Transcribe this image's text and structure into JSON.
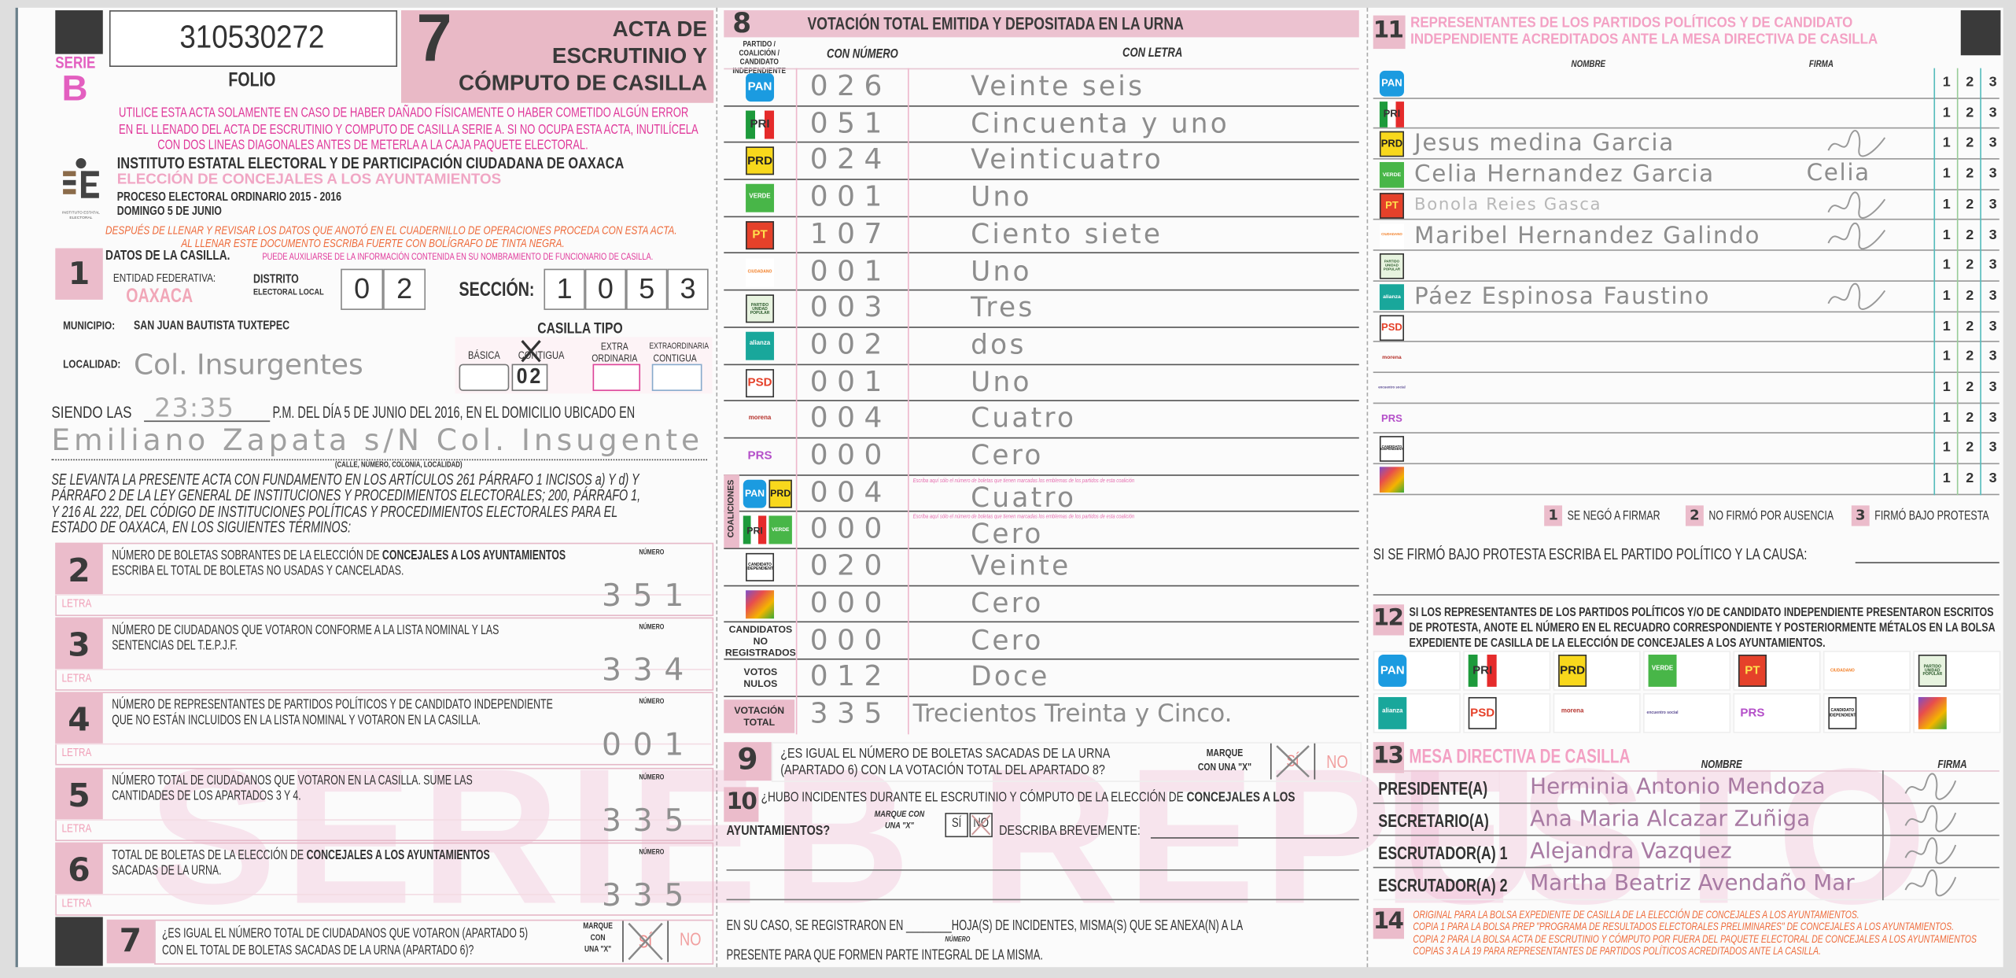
{
  "header": {
    "serie_label": "SERIE",
    "serie_letter": "B",
    "folio_number": "310530272",
    "folio_label": "FOLIO",
    "acta_number": "7",
    "title_lines": [
      "ACTA DE",
      "ESCRUTINIO Y",
      "CÓMPUTO DE CASILLA"
    ]
  },
  "instructions": [
    "UTILICE ESTA ACTA SOLAMENTE EN CASO DE HABER DAÑADO FÍSICAMENTE O HABER COMETIDO ALGÚN ERROR",
    "EN EL LLENADO DEL ACTA DE ESCRUTINIO Y COMPUTO DE CASILLA SERIE A. SI NO OCUPA ESTA ACTA, INUTILÍCELA",
    "CON DOS LINEAS DIAGONALES ANTES DE METERLA A LA CAJA PAQUETE ELECTORAL."
  ],
  "institute": {
    "logo_text": "INSTITUTO ESTATAL ELECTORAL",
    "name": "INSTITUTO ESTATAL ELECTORAL Y DE PARTICIPACIÓN CIUDADANA DE OAXACA",
    "election": "ELECCIÓN DE CONCEJALES A LOS AYUNTAMIENTOS",
    "process": "PROCESO ELECTORAL ORDINARIO 2015 - 2016",
    "date": "DOMINGO 5 DE JUNIO"
  },
  "fill_instructions": [
    "DESPUÉS DE LLENAR Y REVISAR LOS DATOS QUE ANOTÓ EN EL CUADERNILLO DE OPERACIONES PROCEDA CON ESTA ACTA.",
    "AL LLENAR ESTE DOCUMENTO ESCRIBA FUERTE CON BOLÍGRAFO DE TINTA NEGRA."
  ],
  "section1": {
    "number": "1",
    "title": "DATOS DE LA CASILLA.",
    "hint": "PUEDE AUXILIARSE DE LA INFORMACIÓN CONTENIDA EN SU NOMBRAMIENTO DE FUNCIONARIO DE CASILLA.",
    "entidad_label": "ENTIDAD FEDERATIVA:",
    "entidad_value": "OAXACA",
    "distrito_label_1": "DISTRITO",
    "distrito_label_2": "ELECTORAL LOCAL",
    "distrito_digits": [
      "0",
      "2"
    ],
    "seccion_label": "SECCIÓN:",
    "seccion_digits": [
      "1",
      "0",
      "5",
      "3"
    ],
    "municipio_label": "MUNICIPIO:",
    "municipio_value": "SAN JUAN BAUTISTA TUXTEPEC",
    "casilla_tipo_label": "CASILLA TIPO",
    "casilla_tipos": {
      "basica": "BÁSICA",
      "contigua": "CONTIGUA",
      "contigua_value": "02",
      "contigua_marked": true,
      "extra_1": "EXTRA",
      "extra_2": "ORDINARIA",
      "extra_contigua_1": "EXTRAORDINARIA",
      "extra_contigua_2": "CONTIGUA"
    },
    "localidad_label": "LOCALIDAD:",
    "localidad_value": "Col. Insurgentes",
    "siendo_las_label": "SIENDO LAS",
    "hora": "23:35",
    "siendo_las_rest": "P.M. DEL DÍA 5 DE JUNIO DEL 2016, EN EL DOMICILIO UBICADO EN",
    "domicilio": "Emiliano Zapata s/N Col. Insugente",
    "domicilio_hint": "(CALLE, NÚMERO, COLONIA, LOCALIDAD)",
    "legal_text": [
      "SE LEVANTA LA PRESENTE ACTA CON FUNDAMENTO EN LOS ARTÍCULOS 261 PÁRRAFO 1 INCISOS a) Y d) Y",
      "PÁRRAFO  2 DE LA LEY GENERAL DE INSTITUCIONES Y PROCEDIMIENTOS ELECTORALES; 200, PÁRRAFO 1,",
      "Y 216 AL 222,  DEL CÓDIGO DE INSTITUCIONES POLÍTICAS Y PROCEDIMIENTOS ELECTORALES PARA EL",
      "ESTADO DE OAXACA, EN LOS SIGUIENTES TÉRMINOS:"
    ]
  },
  "count_sections": [
    {
      "number": "2",
      "line1": "NÚMERO DE BOLETAS SOBRANTES DE LA ELECCIÓN DE ",
      "line1_bold": "CONCEJALES A LOS AYUNTAMIENTOS",
      "line2": "ESCRIBA EL TOTAL DE BOLETAS NO USADAS Y CANCELADAS.",
      "value": "351"
    },
    {
      "number": "3",
      "line1": "NÚMERO DE CIUDADANOS QUE VOTARON CONFORME A LA LISTA NOMINAL Y LAS",
      "line1_bold": "",
      "line2": "SENTENCIAS DEL T.E.P.J.F.",
      "value": "334"
    },
    {
      "number": "4",
      "line1": "NÚMERO DE REPRESENTANTES DE PARTIDOS POLÍTICOS Y DE CANDIDATO INDEPENDIENTE",
      "line1_bold": "",
      "line2": "QUE NO ESTÁN INCLUIDOS EN LA LISTA NOMINAL Y VOTARON EN LA CASILLA.",
      "value": "001"
    },
    {
      "number": "5",
      "line1": "NÚMERO TOTAL DE CIUDADANOS QUE VOTARON EN LA CASILLA. SUME LAS",
      "line1_bold": "",
      "line2": "CANTIDADES DE LOS APARTADOS 3 Y 4.",
      "value": "335"
    },
    {
      "number": "6",
      "line1": "TOTAL DE BOLETAS DE LA ELECCIÓN DE ",
      "line1_bold": "CONCEJALES A LOS AYUNTAMIENTOS",
      "line2": "SACADAS DE LA URNA.",
      "value": "335"
    }
  ],
  "count_labels": {
    "numero": "NÚMERO",
    "letra": "LETRA"
  },
  "section7": {
    "number": "7",
    "question": [
      "¿ES IGUAL EL NÚMERO TOTAL DE CIUDADANOS QUE VOTARON (APARTADO 5)",
      "CON EL TOTAL DE BOLETAS SACADAS  DE LA URNA (APARTADO 6)?"
    ],
    "marque": [
      "MARQUE",
      "CON",
      "UNA \"X\""
    ],
    "si": "SÍ",
    "no": "NO",
    "answer": "SÍ"
  },
  "watermark": [
    "SERIE",
    "B REPU",
    "ESTO"
  ],
  "parties": {
    "PAN": {
      "label": "PAN",
      "icon": "pan-emblem-icon",
      "bg": "#1b9be0",
      "fg": "#ffffff"
    },
    "PRI": {
      "label": "PRI",
      "icon": "pri-emblem-icon",
      "bg": "linear-gradient(90deg,#1d9a3b 33%,#ffffff 33%,#ffffff 66%,#e52b2b 66%)",
      "fg": "#333333"
    },
    "PRD": {
      "label": "PRD",
      "icon": "prd-emblem-icon",
      "bg": "#f8d81c",
      "fg": "#222222"
    },
    "VERDE": {
      "label": "VERDE",
      "icon": "verde-emblem-icon",
      "bg": "#48b648",
      "fg": "#ffffff"
    },
    "PT": {
      "label": "PT",
      "icon": "pt-emblem-icon",
      "bg": "#e5412a",
      "fg": "#ffe14d"
    },
    "MC": {
      "label": "CIUDADANO",
      "icon": "movimiento-ciudadano-emblem-icon",
      "bg": "#ffffff",
      "fg": "#f27c22"
    },
    "PUP": {
      "label": "PARTIDO UNIDAD POPULAR",
      "icon": "unidad-popular-emblem-icon",
      "bg": "#e7f3df",
      "fg": "#2b5a2b"
    },
    "NA": {
      "label": "alianza",
      "icon": "nueva-alianza-emblem-icon",
      "bg": "#19a79b",
      "fg": "#ffffff"
    },
    "PSD": {
      "label": "PSD",
      "icon": "psd-emblem-icon",
      "bg": "#ffffff",
      "fg": "#e5412a"
    },
    "MORENA": {
      "label": "morena",
      "icon": "morena-emblem-icon",
      "bg": "transparent",
      "fg": "#b5322c"
    },
    "PES": {
      "label": "encuentro social",
      "icon": "encuentro-social-emblem-icon",
      "bg": "transparent",
      "fg": "#5b4c93"
    },
    "PRS": {
      "label": "PRS",
      "icon": "prs-emblem-icon",
      "bg": "transparent",
      "fg": "#b44fc9"
    },
    "IND": {
      "label": "CANDIDATO INDEPENDIENTE",
      "icon": "candidato-independiente-emblem-icon",
      "bg": "#ffffff",
      "fg": "#111111"
    },
    "HAND": {
      "label": "",
      "icon": "hand-emblem-icon",
      "bg": "linear-gradient(135deg,#7b4fc9,#e84d4d,#f4b400,#3aa935)",
      "fg": "#ffffff"
    }
  },
  "section8": {
    "number": "8",
    "title": "VOTACIÓN TOTAL EMITIDA Y DEPOSITADA EN LA URNA",
    "col_party": "PARTIDO / COALICIÓN / CANDIDATO INDEPENDIENTE",
    "col_number": "CON NÚMERO",
    "col_letter": "CON LETRA",
    "coalitions_label": "COALICIONES",
    "coalition_hint": "Escriba aquí sólo el número de boletas que tienen marcadas los emblemas de los partidos de esta coalición",
    "rows": [
      {
        "logos": [
          "PAN"
        ],
        "number": "026",
        "letter": "Veinte seis"
      },
      {
        "logos": [
          "PRI"
        ],
        "number": "051",
        "letter": "Cincuenta y uno"
      },
      {
        "logos": [
          "PRD"
        ],
        "number": "024",
        "letter": "Veinticuatro"
      },
      {
        "logos": [
          "VERDE"
        ],
        "number": "001",
        "letter": "Uno"
      },
      {
        "logos": [
          "PT"
        ],
        "number": "107",
        "letter": "Ciento siete"
      },
      {
        "logos": [
          "MC"
        ],
        "number": "001",
        "letter": "Uno"
      },
      {
        "logos": [
          "PUP"
        ],
        "number": "003",
        "letter": "Tres"
      },
      {
        "logos": [
          "NA"
        ],
        "number": "002",
        "letter": "dos"
      },
      {
        "logos": [
          "PSD"
        ],
        "number": "001",
        "letter": "Uno"
      },
      {
        "logos": [
          "MORENA"
        ],
        "number": "004",
        "letter": "Cuatro"
      },
      {
        "logos": [
          "PRS"
        ],
        "number": "000",
        "letter": "Cero"
      },
      {
        "logos": [
          "PAN",
          "PRD"
        ],
        "coalition": true,
        "number": "004",
        "letter": "Cuatro"
      },
      {
        "logos": [
          "PRI",
          "VERDE"
        ],
        "coalition": true,
        "number": "000",
        "letter": "Cero"
      },
      {
        "logos": [
          "IND"
        ],
        "number": "020",
        "letter": "Veinte"
      },
      {
        "logos": [
          "HAND"
        ],
        "number": "000",
        "letter": "Cero"
      },
      {
        "label": "CANDIDATOS NO REGISTRADOS",
        "number": "000",
        "letter": "Cero"
      },
      {
        "label": "VOTOS NULOS",
        "number": "012",
        "letter": "Doce"
      },
      {
        "label": "VOTACIÓN TOTAL",
        "total": true,
        "number": "335",
        "letter": "Trecientos Treinta y Cinco."
      }
    ]
  },
  "section9": {
    "number": "9",
    "question": [
      "¿ES IGUAL EL NÚMERO DE BOLETAS SACADAS DE LA URNA",
      "(APARTADO 6) CON LA VOTACIÓN TOTAL DEL APARTADO 8?"
    ],
    "marque": [
      "MARQUE",
      "CON UNA \"X\""
    ],
    "si": "SÍ",
    "no": "NO",
    "answer": "SÍ"
  },
  "section10": {
    "number": "10",
    "question_a": "¿HUBO INCIDENTES DURANTE EL ESCRUTINIO Y CÓMPUTO DE LA ELECCIÓN  DE ",
    "question_bold": "CONCEJALES A LOS",
    "question_b": "AYUNTAMIENTOS?",
    "marque": [
      "MARQUE CON",
      "UNA \"X\""
    ],
    "si": "SÍ",
    "no": "NO",
    "answer": "NO",
    "describe_label": "DESCRIBA BREVEMENTE:",
    "sheets_a": "EN SU CASO, SE REGISTRARON EN ________HOJA(S) DE INCIDENTES, MISMA(S) QUE SE ANEXA(N) A LA",
    "sheets_hint": "NÚMERO",
    "sheets_b": "PRESENTE PARA QUE FORMEN PARTE INTEGRAL DE LA MISMA."
  },
  "section11": {
    "number": "11",
    "title": [
      "REPRESENTANTES DE LOS PARTIDOS POLÍTICOS Y DE CANDIDATO",
      "INDEPENDIENTE ACREDITADOS ANTE LA MESA DIRECTIVA DE CASILLA"
    ],
    "col_name": "NOMBRE",
    "col_signature": "FIRMA",
    "options": [
      "1",
      "2",
      "3"
    ],
    "rows": [
      {
        "party": "PAN",
        "name": "",
        "signed": false
      },
      {
        "party": "PRI",
        "name": "",
        "signed": false
      },
      {
        "party": "PRD",
        "name": "Jesus medina Garcia",
        "signed": true
      },
      {
        "party": "VERDE",
        "name": "Celia Hernandez Garcia",
        "signature_text": "Celia",
        "signed": true
      },
      {
        "party": "PT",
        "name": "Bonola Reies Gasca",
        "signed": true,
        "faint": true
      },
      {
        "party": "MC",
        "name": "Maribel Hernandez Galindo",
        "signed": true
      },
      {
        "party": "PUP",
        "name": "",
        "signed": false
      },
      {
        "party": "NA",
        "name": "Páez Espinosa Faustino",
        "signed": true
      },
      {
        "party": "PSD",
        "name": "",
        "signed": false
      },
      {
        "party": "MORENA",
        "name": "",
        "signed": false
      },
      {
        "party": "PES",
        "name": "",
        "signed": false
      },
      {
        "party": "PRS",
        "name": "",
        "signed": false
      },
      {
        "party": "IND",
        "name": "",
        "signed": false
      },
      {
        "party": "HAND",
        "name": "",
        "signed": false
      }
    ],
    "legend": [
      {
        "key": "1",
        "text": "SE NEGÓ A FIRMAR"
      },
      {
        "key": "2",
        "text": "NO FIRMÓ POR AUSENCIA"
      },
      {
        "key": "3",
        "text": "FIRMÓ BAJO PROTESTA"
      }
    ],
    "protest_label": "SI SE FIRMÓ BAJO PROTESTA ESCRIBA EL PARTIDO POLÍTICO Y LA CAUSA:"
  },
  "section12": {
    "number": "12",
    "text": [
      "SI LOS REPRESENTANTES DE LOS PARTIDOS POLÍTICOS Y/O DE CANDIDATO INDEPENDIENTE PRESENTARON ESCRITOS",
      "DE PROTESTA, ANOTE EL NÚMERO EN EL RECUADRO CORRESPONDIENTE Y POSTERIORMENTE MÉTALOS EN LA BOLSA",
      "EXPEDIENTE DE CASILLA DE LA ELECCIÓN DE CONCEJALES A LOS AYUNTAMIENTOS."
    ],
    "grid": [
      [
        "PAN",
        "PRI",
        "PRD",
        "VERDE",
        "PT",
        "MC",
        "PUP"
      ],
      [
        "NA",
        "PSD",
        "MORENA",
        "PES",
        "PRS",
        "IND",
        "HAND"
      ]
    ]
  },
  "section13": {
    "number": "13",
    "title": "MESA DIRECTIVA DE CASILLA",
    "col_name": "NOMBRE",
    "col_signature": "FIRMA",
    "officials": [
      {
        "role": "PRESIDENTE(A)",
        "name": "Herminia Antonio Mendoza"
      },
      {
        "role": "SECRETARIO(A)",
        "name": "Ana Maria Alcazar Zuñiga"
      },
      {
        "role": "ESCRUTADOR(A) 1",
        "name": "Alejandra Vazquez"
      },
      {
        "role": "ESCRUTADOR(A) 2",
        "name": "Martha Beatriz Avendaño Mar"
      }
    ]
  },
  "section14": {
    "number": "14",
    "lines": [
      "ORIGINAL PARA LA BOLSA EXPEDIENTE DE CASILLA DE LA ELECCIÓN DE CONCEJALES A LOS AYUNTAMIENTOS.",
      "COPIA 1 PARA LA BOLSA PREP \"PROGRAMA DE RESULTADOS ELECTORALES PRELIMINARES\" DE CONCEJALES A LOS AYUNTAMIENTOS.",
      "COPIA 2 PARA LA BOLSA  ACTA DE ESCRUTINIO Y CÓMPUTO POR FUERA DEL PAQUETE ELECTORAL DE CONCEJALES A LOS AYUNTAMIENTOS",
      "COPIAS 3 A LA 19 PARA REPRESENTANTES DE PARTIDOS POLÍTICOS ACREDITADOS ANTE LA CASILLA."
    ]
  },
  "colors": {
    "pink_block": "#ebbccb",
    "magenta_text": "#e0389a",
    "orange_text": "#ee6a3a",
    "dark_block": "#3a3a3a",
    "handwriting": "#8d8d8d",
    "official_ink": "#a87aa3"
  }
}
